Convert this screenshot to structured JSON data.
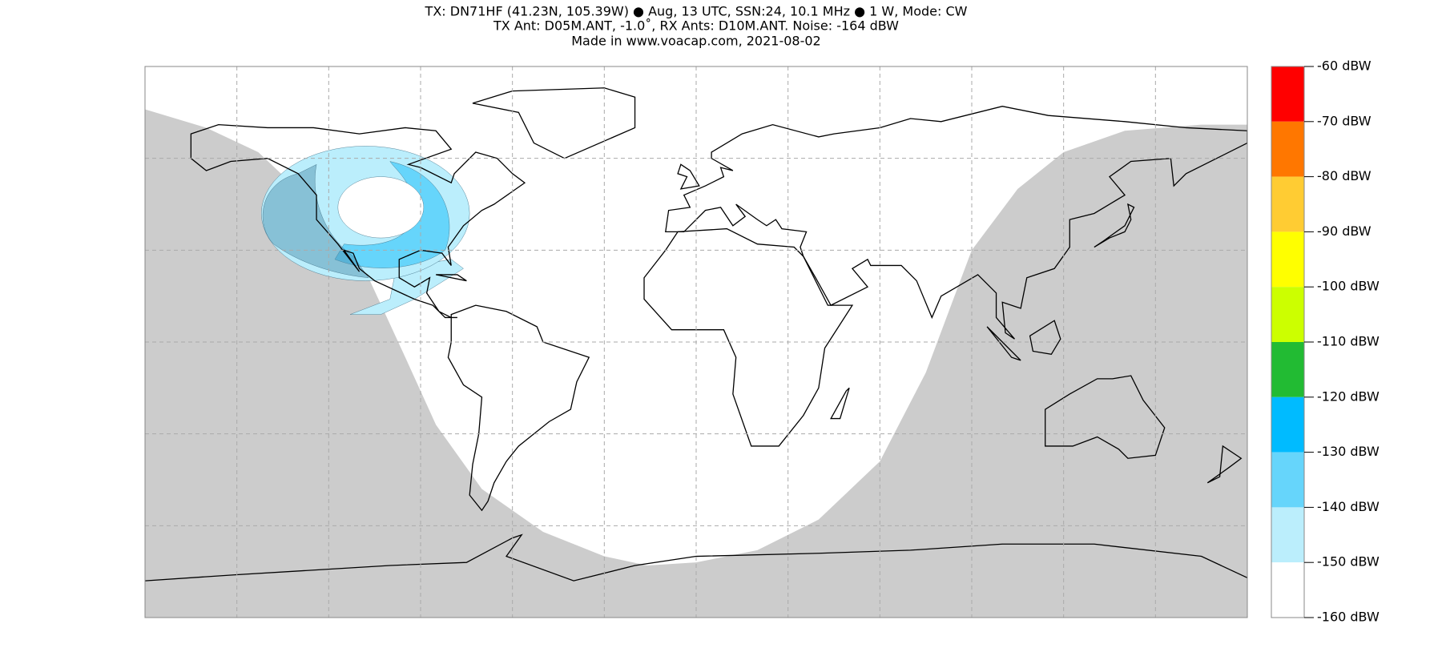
{
  "header": {
    "lines": [
      "TX: DN71HF (41.23N, 105.39W) ● Aug, 13 UTC, SSN:24, 10.1 MHz ● 1 W, Mode: CW",
      "TX Ant: D05M.ANT, -1.0˚, RX Ants: D10M.ANT. Noise: -164 dBW",
      "Made in www.voacap.com, 2021-08-02"
    ]
  },
  "colorbar": {
    "labels": [
      "-60 dBW",
      "-70 dBW",
      "-80 dBW",
      "-90 dBW",
      "-100 dBW",
      "-110 dBW",
      "-120 dBW",
      "-130 dBW",
      "-140 dBW",
      "-150 dBW",
      "-160 dBW"
    ],
    "colors": [
      "#ff0000",
      "#ff7700",
      "#ffcc33",
      "#ffff00",
      "#ccff00",
      "#22bb33",
      "#00bbff",
      "#66d5fb",
      "#bbeefc",
      "#ffffff"
    ]
  }
}
